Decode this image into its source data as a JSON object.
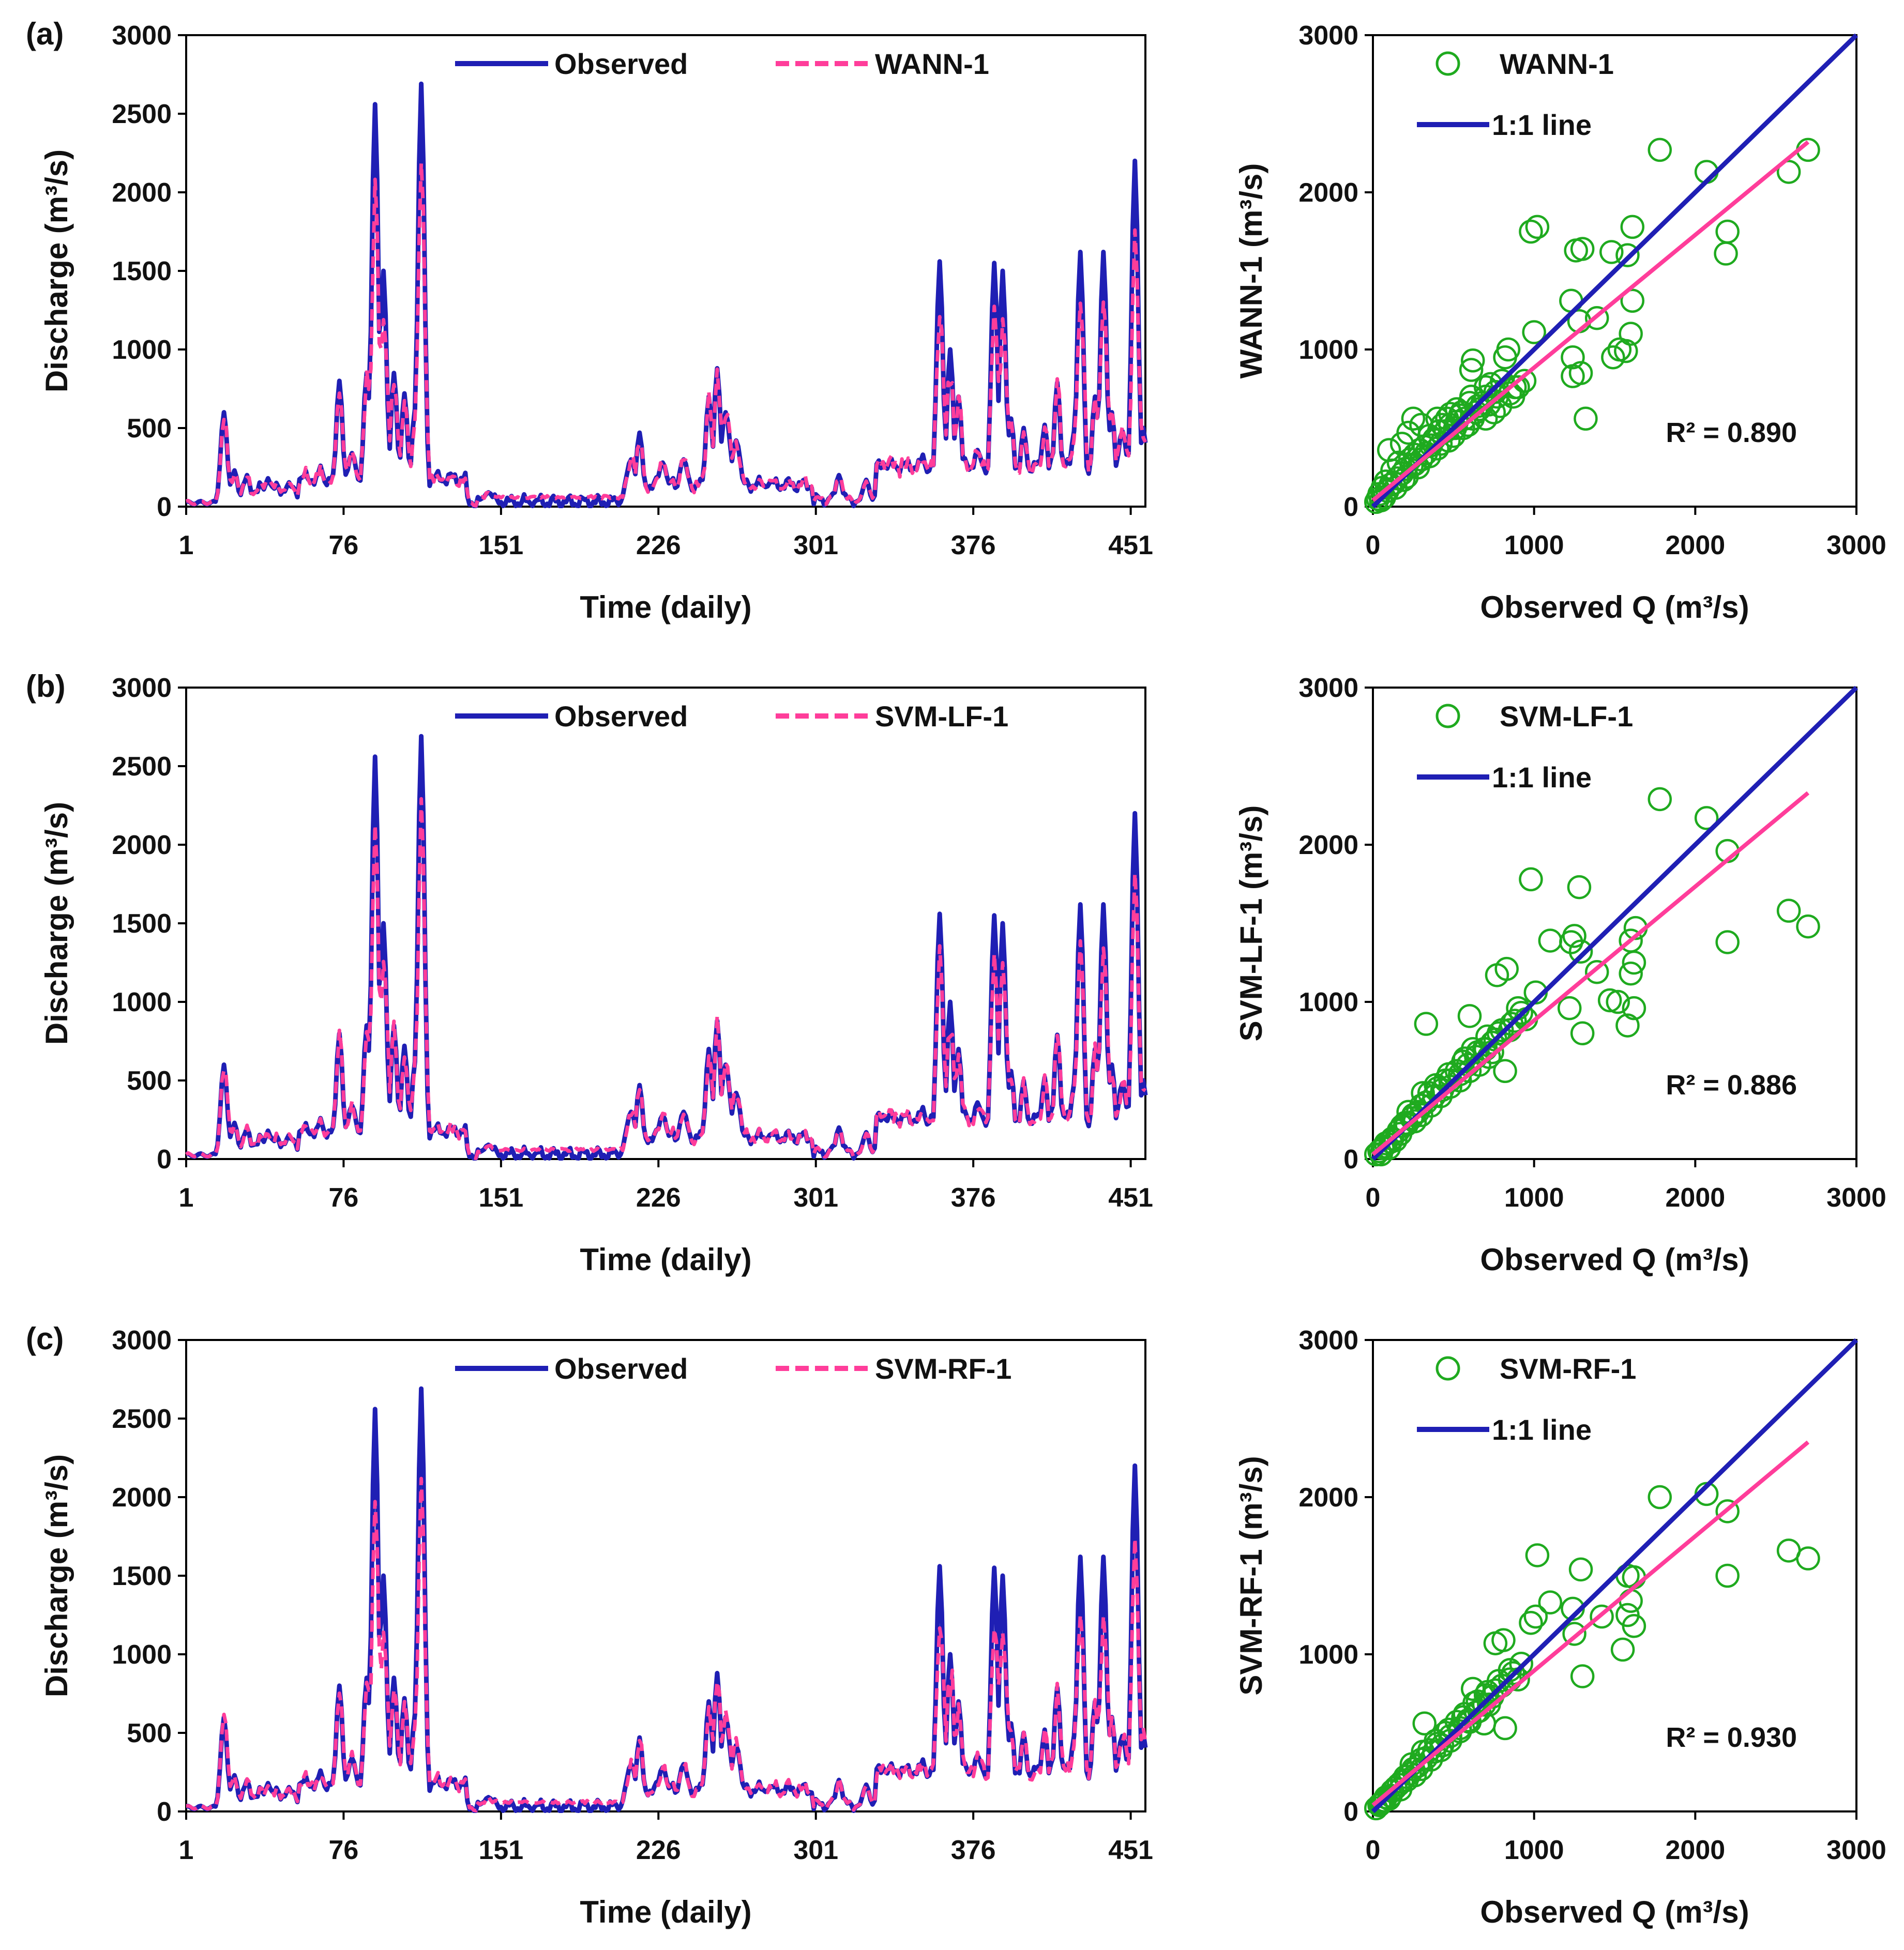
{
  "figure": {
    "panel_labels": [
      "(a)",
      "(b)",
      "(c)"
    ],
    "colors": {
      "observed": "#1f1fb4",
      "model": "#ff3d9a",
      "scatter": "#1faa1f",
      "one_to_one": "#1f1fb4",
      "fit": "#ff3d9a",
      "axis": "#000000"
    }
  },
  "chart_data": [
    {
      "type": "line",
      "panel": "(a)-time-series",
      "xlabel": "Time (daily)",
      "ylabel": "Discharge (m³/s)",
      "xlim": [
        1,
        458
      ],
      "ylim": [
        0,
        3000
      ],
      "xticks": [
        1,
        76,
        151,
        226,
        301,
        376,
        451
      ],
      "yticks": [
        0,
        500,
        1000,
        1500,
        2000,
        2500,
        3000
      ],
      "series": [
        {
          "name": "Observed",
          "style": "solid"
        },
        {
          "name": "WANN-1",
          "style": "dashed"
        }
      ],
      "model_noise_seed": 11,
      "model_peak_factor": 0.82
    },
    {
      "type": "scatter",
      "panel": "(a)-scatter",
      "xlabel": "Observed Q (m³/s)",
      "ylabel": "WANN-1 (m³/s)",
      "xlim": [
        0,
        3000
      ],
      "ylim": [
        0,
        3000
      ],
      "xticks": [
        0,
        1000,
        2000,
        3000
      ],
      "yticks": [
        0,
        1000,
        2000,
        3000
      ],
      "legend": [
        "WANN-1",
        "1:1 line"
      ],
      "r2": "R² = 0.890",
      "one_to_one": [
        [
          0,
          0
        ],
        [
          3000,
          3000
        ]
      ],
      "fit_line": [
        [
          0,
          40
        ],
        [
          2700,
          2320
        ]
      ],
      "points": [
        [
          2700,
          2270
        ],
        [
          2580,
          2130
        ],
        [
          2070,
          2130
        ],
        [
          1780,
          2270
        ],
        [
          2200,
          1750
        ],
        [
          2190,
          1610
        ],
        [
          1020,
          1780
        ],
        [
          980,
          1750
        ],
        [
          1580,
          1600
        ],
        [
          1300,
          1640
        ],
        [
          1260,
          1630
        ],
        [
          1480,
          1620
        ],
        [
          1610,
          1780
        ],
        [
          1230,
          1310
        ],
        [
          1610,
          1310
        ],
        [
          1600,
          1100
        ],
        [
          1390,
          1200
        ],
        [
          1280,
          1180
        ],
        [
          1530,
          1000
        ],
        [
          1490,
          950
        ],
        [
          1570,
          990
        ],
        [
          1290,
          850
        ],
        [
          1320,
          560
        ],
        [
          1240,
          950
        ],
        [
          1240,
          830
        ],
        [
          1000,
          1110
        ],
        [
          820,
          950
        ],
        [
          840,
          1000
        ],
        [
          610,
          870
        ],
        [
          620,
          930
        ],
        [
          700,
          700
        ],
        [
          650,
          640
        ],
        [
          760,
          730
        ],
        [
          800,
          800
        ],
        [
          870,
          700
        ],
        [
          550,
          600
        ],
        [
          480,
          590
        ],
        [
          400,
          560
        ],
        [
          300,
          520
        ],
        [
          250,
          560
        ],
        [
          220,
          470
        ],
        [
          180,
          400
        ],
        [
          100,
          360
        ],
        [
          160,
          280
        ],
        [
          120,
          230
        ],
        [
          80,
          160
        ],
        [
          60,
          120
        ],
        [
          40,
          80
        ],
        [
          30,
          50
        ],
        [
          20,
          30
        ],
        [
          200,
          240
        ],
        [
          300,
          300
        ],
        [
          350,
          320
        ],
        [
          420,
          400
        ],
        [
          500,
          450
        ],
        [
          560,
          500
        ],
        [
          620,
          560
        ],
        [
          700,
          560
        ],
        [
          750,
          600
        ],
        [
          900,
          760
        ],
        [
          350,
          450
        ],
        [
          260,
          330
        ],
        [
          430,
          520
        ],
        [
          480,
          520
        ],
        [
          520,
          540
        ],
        [
          590,
          520
        ],
        [
          660,
          620
        ],
        [
          230,
          300
        ],
        [
          150,
          180
        ],
        [
          90,
          100
        ],
        [
          320,
          380
        ],
        [
          380,
          430
        ],
        [
          450,
          480
        ],
        [
          540,
          580
        ],
        [
          600,
          660
        ],
        [
          680,
          660
        ],
        [
          730,
          780
        ],
        [
          850,
          720
        ],
        [
          790,
          640
        ],
        [
          280,
          250
        ],
        [
          180,
          210
        ],
        [
          110,
          140
        ],
        [
          50,
          40
        ],
        [
          70,
          60
        ],
        [
          140,
          120
        ],
        [
          210,
          190
        ],
        [
          260,
          270
        ],
        [
          330,
          340
        ],
        [
          400,
          370
        ],
        [
          470,
          420
        ],
        [
          510,
          500
        ],
        [
          570,
          560
        ],
        [
          640,
          600
        ],
        [
          720,
          650
        ],
        [
          770,
          700
        ],
        [
          880,
          760
        ],
        [
          940,
          800
        ],
        [
          410,
          480
        ],
        [
          360,
          390
        ],
        [
          240,
          260
        ],
        [
          190,
          170
        ],
        [
          130,
          150
        ],
        [
          290,
          360
        ],
        [
          460,
          560
        ],
        [
          520,
          620
        ],
        [
          610,
          700
        ],
        [
          700,
          760
        ]
      ]
    },
    {
      "type": "line",
      "panel": "(b)-time-series",
      "xlabel": "Time (daily)",
      "ylabel": "Discharge (m³/s)",
      "xlim": [
        1,
        458
      ],
      "ylim": [
        0,
        3000
      ],
      "xticks": [
        1,
        76,
        151,
        226,
        301,
        376,
        451
      ],
      "yticks": [
        0,
        500,
        1000,
        1500,
        2000,
        2500,
        3000
      ],
      "series": [
        {
          "name": "Observed",
          "style": "solid"
        },
        {
          "name": "SVM-LF-1",
          "style": "dashed"
        }
      ],
      "model_noise_seed": 23,
      "model_peak_factor": 0.86
    },
    {
      "type": "scatter",
      "panel": "(b)-scatter",
      "xlabel": "Observed Q (m³/s)",
      "ylabel": "SVM-LF-1 (m³/s)",
      "xlim": [
        0,
        3000
      ],
      "ylim": [
        0,
        3000
      ],
      "xticks": [
        0,
        1000,
        2000,
        3000
      ],
      "yticks": [
        0,
        1000,
        2000,
        3000
      ],
      "legend": [
        "SVM-LF-1",
        "1:1 line"
      ],
      "r2": "R² = 0.886",
      "one_to_one": [
        [
          0,
          0
        ],
        [
          3000,
          3000
        ]
      ],
      "fit_line": [
        [
          0,
          30
        ],
        [
          2700,
          2330
        ]
      ],
      "points": [
        [
          1780,
          2290
        ],
        [
          2070,
          2170
        ],
        [
          2200,
          1960
        ],
        [
          2580,
          1580
        ],
        [
          2700,
          1480
        ],
        [
          2200,
          1380
        ],
        [
          980,
          1780
        ],
        [
          1280,
          1730
        ],
        [
          1250,
          1420
        ],
        [
          1230,
          1380
        ],
        [
          1100,
          1390
        ],
        [
          1290,
          1320
        ],
        [
          1630,
          1470
        ],
        [
          1600,
          1390
        ],
        [
          1390,
          1190
        ],
        [
          1620,
          1250
        ],
        [
          1600,
          1180
        ],
        [
          1470,
          1010
        ],
        [
          1520,
          1000
        ],
        [
          1580,
          850
        ],
        [
          1300,
          800
        ],
        [
          1620,
          960
        ],
        [
          1220,
          960
        ],
        [
          770,
          1170
        ],
        [
          830,
          1210
        ],
        [
          1010,
          1060
        ],
        [
          880,
          880
        ],
        [
          330,
          860
        ],
        [
          600,
          910
        ],
        [
          820,
          560
        ],
        [
          700,
          700
        ],
        [
          650,
          680
        ],
        [
          760,
          760
        ],
        [
          560,
          620
        ],
        [
          520,
          560
        ],
        [
          450,
          500
        ],
        [
          400,
          450
        ],
        [
          350,
          420
        ],
        [
          300,
          340
        ],
        [
          250,
          280
        ],
        [
          200,
          230
        ],
        [
          160,
          180
        ],
        [
          120,
          130
        ],
        [
          80,
          100
        ],
        [
          60,
          70
        ],
        [
          40,
          50
        ],
        [
          20,
          30
        ],
        [
          100,
          70
        ],
        [
          140,
          120
        ],
        [
          180,
          210
        ],
        [
          240,
          260
        ],
        [
          280,
          300
        ],
        [
          330,
          360
        ],
        [
          380,
          400
        ],
        [
          430,
          440
        ],
        [
          480,
          500
        ],
        [
          540,
          540
        ],
        [
          590,
          600
        ],
        [
          640,
          650
        ],
        [
          690,
          700
        ],
        [
          740,
          740
        ],
        [
          800,
          820
        ],
        [
          860,
          860
        ],
        [
          920,
          930
        ],
        [
          950,
          890
        ],
        [
          720,
          650
        ],
        [
          660,
          600
        ],
        [
          600,
          560
        ],
        [
          540,
          500
        ],
        [
          480,
          460
        ],
        [
          420,
          400
        ],
        [
          360,
          340
        ],
        [
          300,
          280
        ],
        [
          260,
          240
        ],
        [
          210,
          220
        ],
        [
          170,
          160
        ],
        [
          110,
          110
        ],
        [
          70,
          80
        ],
        [
          50,
          30
        ],
        [
          220,
          300
        ],
        [
          310,
          420
        ],
        [
          390,
          470
        ],
        [
          470,
          540
        ],
        [
          570,
          640
        ],
        [
          620,
          700
        ],
        [
          710,
          780
        ],
        [
          780,
          800
        ],
        [
          850,
          820
        ],
        [
          900,
          960
        ],
        [
          740,
          680
        ]
      ]
    },
    {
      "type": "line",
      "panel": "(c)-time-series",
      "xlabel": "Time (daily)",
      "ylabel": "Discharge (m³/s)",
      "xlim": [
        1,
        458
      ],
      "ylim": [
        0,
        3000
      ],
      "xticks": [
        1,
        76,
        151,
        226,
        301,
        376,
        451
      ],
      "yticks": [
        0,
        500,
        1000,
        1500,
        2000,
        2500,
        3000
      ],
      "series": [
        {
          "name": "Observed",
          "style": "solid"
        },
        {
          "name": "SVM-RF-1",
          "style": "dashed"
        }
      ],
      "model_noise_seed": 37,
      "model_peak_factor": 0.8
    },
    {
      "type": "scatter",
      "panel": "(c)-scatter",
      "xlabel": "Observed Q (m³/s)",
      "ylabel": "SVM-RF-1 (m³/s)",
      "xlim": [
        0,
        3000
      ],
      "ylim": [
        0,
        3000
      ],
      "xticks": [
        0,
        1000,
        2000,
        3000
      ],
      "yticks": [
        0,
        1000,
        2000,
        3000
      ],
      "legend": [
        "SVM-RF-1",
        "1:1 line"
      ],
      "r2": "R² = 0.930",
      "one_to_one": [
        [
          0,
          0
        ],
        [
          3000,
          3000
        ]
      ],
      "fit_line": [
        [
          0,
          40
        ],
        [
          2700,
          2350
        ]
      ],
      "points": [
        [
          2070,
          2020
        ],
        [
          1780,
          2000
        ],
        [
          2200,
          1910
        ],
        [
          2580,
          1660
        ],
        [
          2700,
          1610
        ],
        [
          2200,
          1500
        ],
        [
          1020,
          1630
        ],
        [
          1290,
          1540
        ],
        [
          1620,
          1490
        ],
        [
          1580,
          1500
        ],
        [
          1100,
          1330
        ],
        [
          1010,
          1240
        ],
        [
          1600,
          1340
        ],
        [
          1420,
          1240
        ],
        [
          1250,
          1130
        ],
        [
          1240,
          1290
        ],
        [
          1580,
          1250
        ],
        [
          1620,
          1180
        ],
        [
          1550,
          1030
        ],
        [
          1300,
          860
        ],
        [
          980,
          1200
        ],
        [
          760,
          1070
        ],
        [
          810,
          1090
        ],
        [
          620,
          780
        ],
        [
          320,
          560
        ],
        [
          850,
          840
        ],
        [
          820,
          530
        ],
        [
          700,
          740
        ],
        [
          650,
          700
        ],
        [
          760,
          770
        ],
        [
          560,
          600
        ],
        [
          520,
          570
        ],
        [
          450,
          500
        ],
        [
          400,
          430
        ],
        [
          350,
          390
        ],
        [
          300,
          330
        ],
        [
          250,
          270
        ],
        [
          200,
          220
        ],
        [
          160,
          170
        ],
        [
          120,
          130
        ],
        [
          80,
          90
        ],
        [
          60,
          60
        ],
        [
          40,
          40
        ],
        [
          20,
          20
        ],
        [
          100,
          80
        ],
        [
          140,
          150
        ],
        [
          180,
          190
        ],
        [
          230,
          240
        ],
        [
          280,
          290
        ],
        [
          330,
          340
        ],
        [
          380,
          380
        ],
        [
          430,
          420
        ],
        [
          480,
          480
        ],
        [
          540,
          530
        ],
        [
          590,
          580
        ],
        [
          640,
          630
        ],
        [
          690,
          680
        ],
        [
          740,
          730
        ],
        [
          800,
          800
        ],
        [
          870,
          880
        ],
        [
          900,
          840
        ],
        [
          720,
          680
        ],
        [
          660,
          640
        ],
        [
          600,
          570
        ],
        [
          540,
          510
        ],
        [
          480,
          450
        ],
        [
          420,
          390
        ],
        [
          360,
          330
        ],
        [
          300,
          270
        ],
        [
          260,
          230
        ],
        [
          210,
          200
        ],
        [
          170,
          140
        ],
        [
          110,
          100
        ],
        [
          70,
          70
        ],
        [
          50,
          50
        ],
        [
          240,
          300
        ],
        [
          310,
          380
        ],
        [
          390,
          450
        ],
        [
          470,
          520
        ],
        [
          570,
          620
        ],
        [
          630,
          690
        ],
        [
          710,
          760
        ],
        [
          780,
          830
        ],
        [
          850,
          900
        ],
        [
          920,
          940
        ],
        [
          690,
          560
        ]
      ]
    }
  ]
}
